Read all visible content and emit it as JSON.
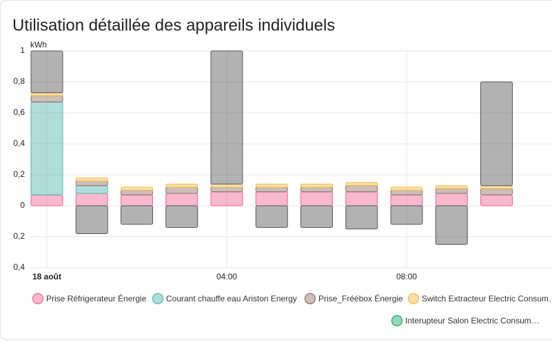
{
  "chart_data": {
    "type": "bar",
    "title": "Utilisation détaillée des appareils individuels",
    "y_label": "kWh",
    "categories": [
      "18 août",
      null,
      null,
      null,
      "04:00",
      null,
      null,
      null,
      "08:00",
      null,
      null
    ],
    "stacked": true,
    "grid": true,
    "ylim": [
      -0.4,
      1
    ],
    "yticks": [
      {
        "value": -0.4,
        "label": "0,4"
      },
      {
        "value": -0.2,
        "label": "0,2"
      },
      0,
      {
        "value": 0.2,
        "label": "0,2"
      },
      {
        "value": 0.4,
        "label": "0,4"
      },
      {
        "value": 0.6,
        "label": "0,6"
      },
      {
        "value": 0.8,
        "label": "0,8"
      },
      1
    ],
    "series": [
      {
        "name": "Prise Réfrigerateur Énergie",
        "color": "#f06292",
        "values": [
          0.07,
          0.08,
          0.07,
          0.08,
          0.09,
          0.09,
          0.09,
          0.09,
          0.07,
          0.08,
          0.07
        ]
      },
      {
        "name": "Courant chauffe eau Ariston Energy",
        "color": "#4db6ac",
        "values": [
          0.6,
          0.05,
          0,
          0,
          0,
          0,
          0,
          0,
          0,
          0,
          0
        ]
      },
      {
        "name": "Prise_Fréébox Énergie",
        "color": "#8d6e63",
        "values": [
          0.04,
          0.03,
          0.03,
          0.04,
          0.03,
          0.03,
          0.03,
          0.04,
          0.03,
          0.03,
          0.04
        ]
      },
      {
        "name": "Switch Extracteur Electric Consum…",
        "color": "#f5b942",
        "values": [
          0.02,
          0.02,
          0.02,
          0.02,
          0.02,
          0.02,
          0.02,
          0.02,
          0.02,
          0.02,
          0.02
        ]
      },
      {
        "name": "Interupteur Salon Electric Consum…",
        "color": "#1aa865",
        "values": [
          0,
          0,
          0,
          0,
          0,
          0,
          0,
          0,
          0,
          0,
          0
        ]
      },
      {
        "color": "#555555",
        "values": [
          0.27,
          -0.18,
          -0.12,
          -0.14,
          0.86,
          -0.14,
          -0.14,
          -0.15,
          -0.12,
          -0.25,
          0.67
        ]
      }
    ]
  }
}
